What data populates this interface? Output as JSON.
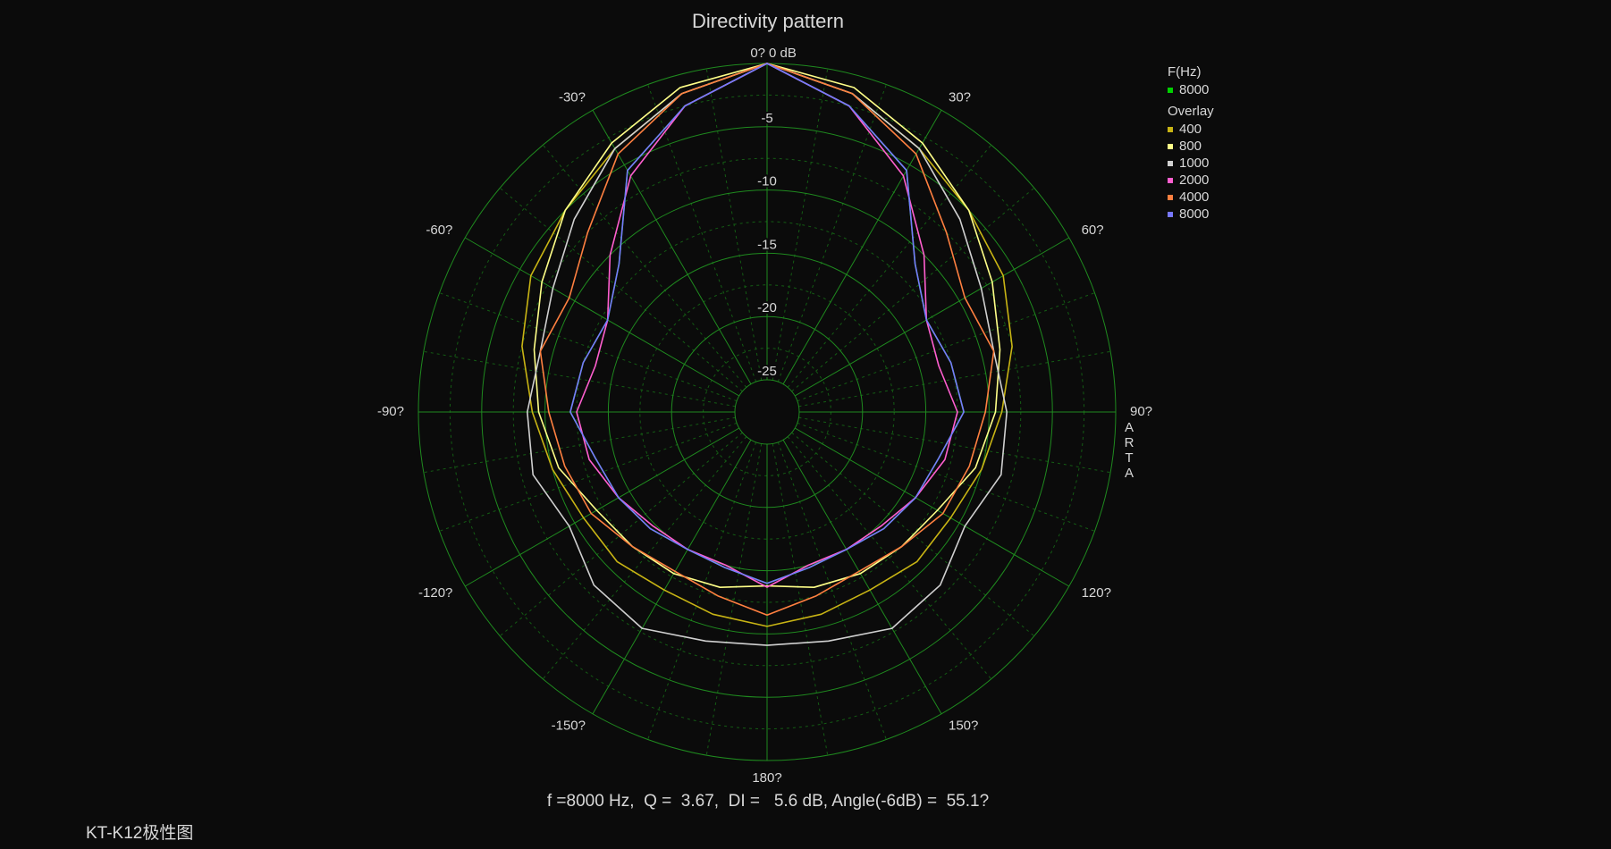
{
  "chart_data": {
    "type": "polar",
    "title": "Directivity pattern",
    "legend_title": "F(Hz)",
    "overlay_title": "Overlay",
    "angles": [
      0,
      15,
      30,
      45,
      60,
      75,
      90,
      105,
      120,
      135,
      150,
      165,
      180,
      195,
      210,
      225,
      240,
      255,
      270,
      285,
      300,
      315,
      330,
      345
    ],
    "rlim": [
      -25,
      0
    ],
    "rticks": [
      -25,
      -20,
      -15,
      -10,
      -5,
      {
        "value": 0,
        "label": "0 dB"
      }
    ],
    "thetaticks": [
      {
        "value": 0,
        "label": "0?"
      },
      {
        "value": 30,
        "label": "30?"
      },
      {
        "value": 60,
        "label": "60?"
      },
      {
        "value": 90,
        "label": "90?"
      },
      {
        "value": 120,
        "label": "120?"
      },
      {
        "value": 150,
        "label": "150?"
      },
      {
        "value": 180,
        "label": "180?"
      },
      {
        "value": -150,
        "label": "-150?"
      },
      {
        "value": -120,
        "label": "-120?"
      },
      {
        "value": -90,
        "label": "-90?"
      },
      {
        "value": -60,
        "label": "-60?"
      },
      {
        "value": -30,
        "label": "-30?"
      }
    ],
    "series": [
      {
        "name": "8000",
        "color": "#00d000",
        "values": [
          0,
          -2.5,
          -5.5,
          -11,
          -13,
          -12.5,
          -12,
          -13.5,
          -14,
          -14.5,
          -15,
          -14.8,
          -14,
          -14.8,
          -15,
          -14.5,
          -14,
          -13.5,
          -12,
          -12.5,
          -13,
          -11,
          -5.5,
          -2.5
        ]
      }
    ],
    "overlay": [
      {
        "name": "400",
        "color": "#c8b414",
        "values": [
          0,
          -1.5,
          -3.5,
          -5,
          -6,
          -7.5,
          -9,
          -10,
          -10.8,
          -10.8,
          -11.3,
          -11,
          -10.6,
          -11,
          -11.3,
          -10.8,
          -10.8,
          -10,
          -9,
          -7.5,
          -6,
          -5,
          -3.5,
          -1.5
        ]
      },
      {
        "name": "800",
        "color": "#ffff88",
        "values": [
          0,
          -1,
          -3,
          -5,
          -7,
          -8.5,
          -9.5,
          -10.5,
          -12,
          -12.5,
          -12.8,
          -13.2,
          -13.8,
          -13.2,
          -12.8,
          -12.5,
          -12,
          -10.5,
          -9.5,
          -8.5,
          -7,
          -5,
          -3,
          -1
        ]
      },
      {
        "name": "1000",
        "color": "#d0d0d0",
        "values": [
          0,
          -1.5,
          -3.5,
          -6,
          -8,
          -9,
          -8.6,
          -8.4,
          -9.5,
          -8.2,
          -7.8,
          -8.8,
          -9.1,
          -8.8,
          -7.8,
          -8.2,
          -9.5,
          -8.4,
          -8.6,
          -9,
          -8,
          -6,
          -3.5,
          -1.5
        ]
      },
      {
        "name": "2000",
        "color": "#ff5fcf",
        "values": [
          0,
          -2.5,
          -6,
          -10,
          -13,
          -13.5,
          -12.5,
          -13,
          -14,
          -14.8,
          -15,
          -15,
          -13.7,
          -15,
          -15,
          -14.8,
          -14,
          -13,
          -12.5,
          -13.5,
          -13,
          -10,
          -6,
          -2.5
        ]
      },
      {
        "name": "4000",
        "color": "#ff8040",
        "values": [
          0,
          -1.5,
          -4,
          -7.5,
          -9.5,
          -9,
          -10.3,
          -11,
          -11.5,
          -12.5,
          -13,
          -12.5,
          -11.5,
          -12.5,
          -13,
          -12.5,
          -11.5,
          -11,
          -10.3,
          -9,
          -9.5,
          -7.5,
          -4,
          -1.5
        ]
      },
      {
        "name": "8000",
        "color": "#7878ff",
        "values": [
          0,
          -2.5,
          -5.5,
          -11,
          -13,
          -12.5,
          -12,
          -13.5,
          -14,
          -14.5,
          -15,
          -14.8,
          -14,
          -14.8,
          -15,
          -14.5,
          -14,
          -13.5,
          -12,
          -12.5,
          -13,
          -11,
          -5.5,
          -2.5
        ]
      }
    ],
    "annotation": "f =8000 Hz,  Q =  3.67,  DI =   5.6 dB, Angle(-6dB) =  55.1?",
    "watermark": "ARTA"
  },
  "footer": "KT-K12极性图"
}
